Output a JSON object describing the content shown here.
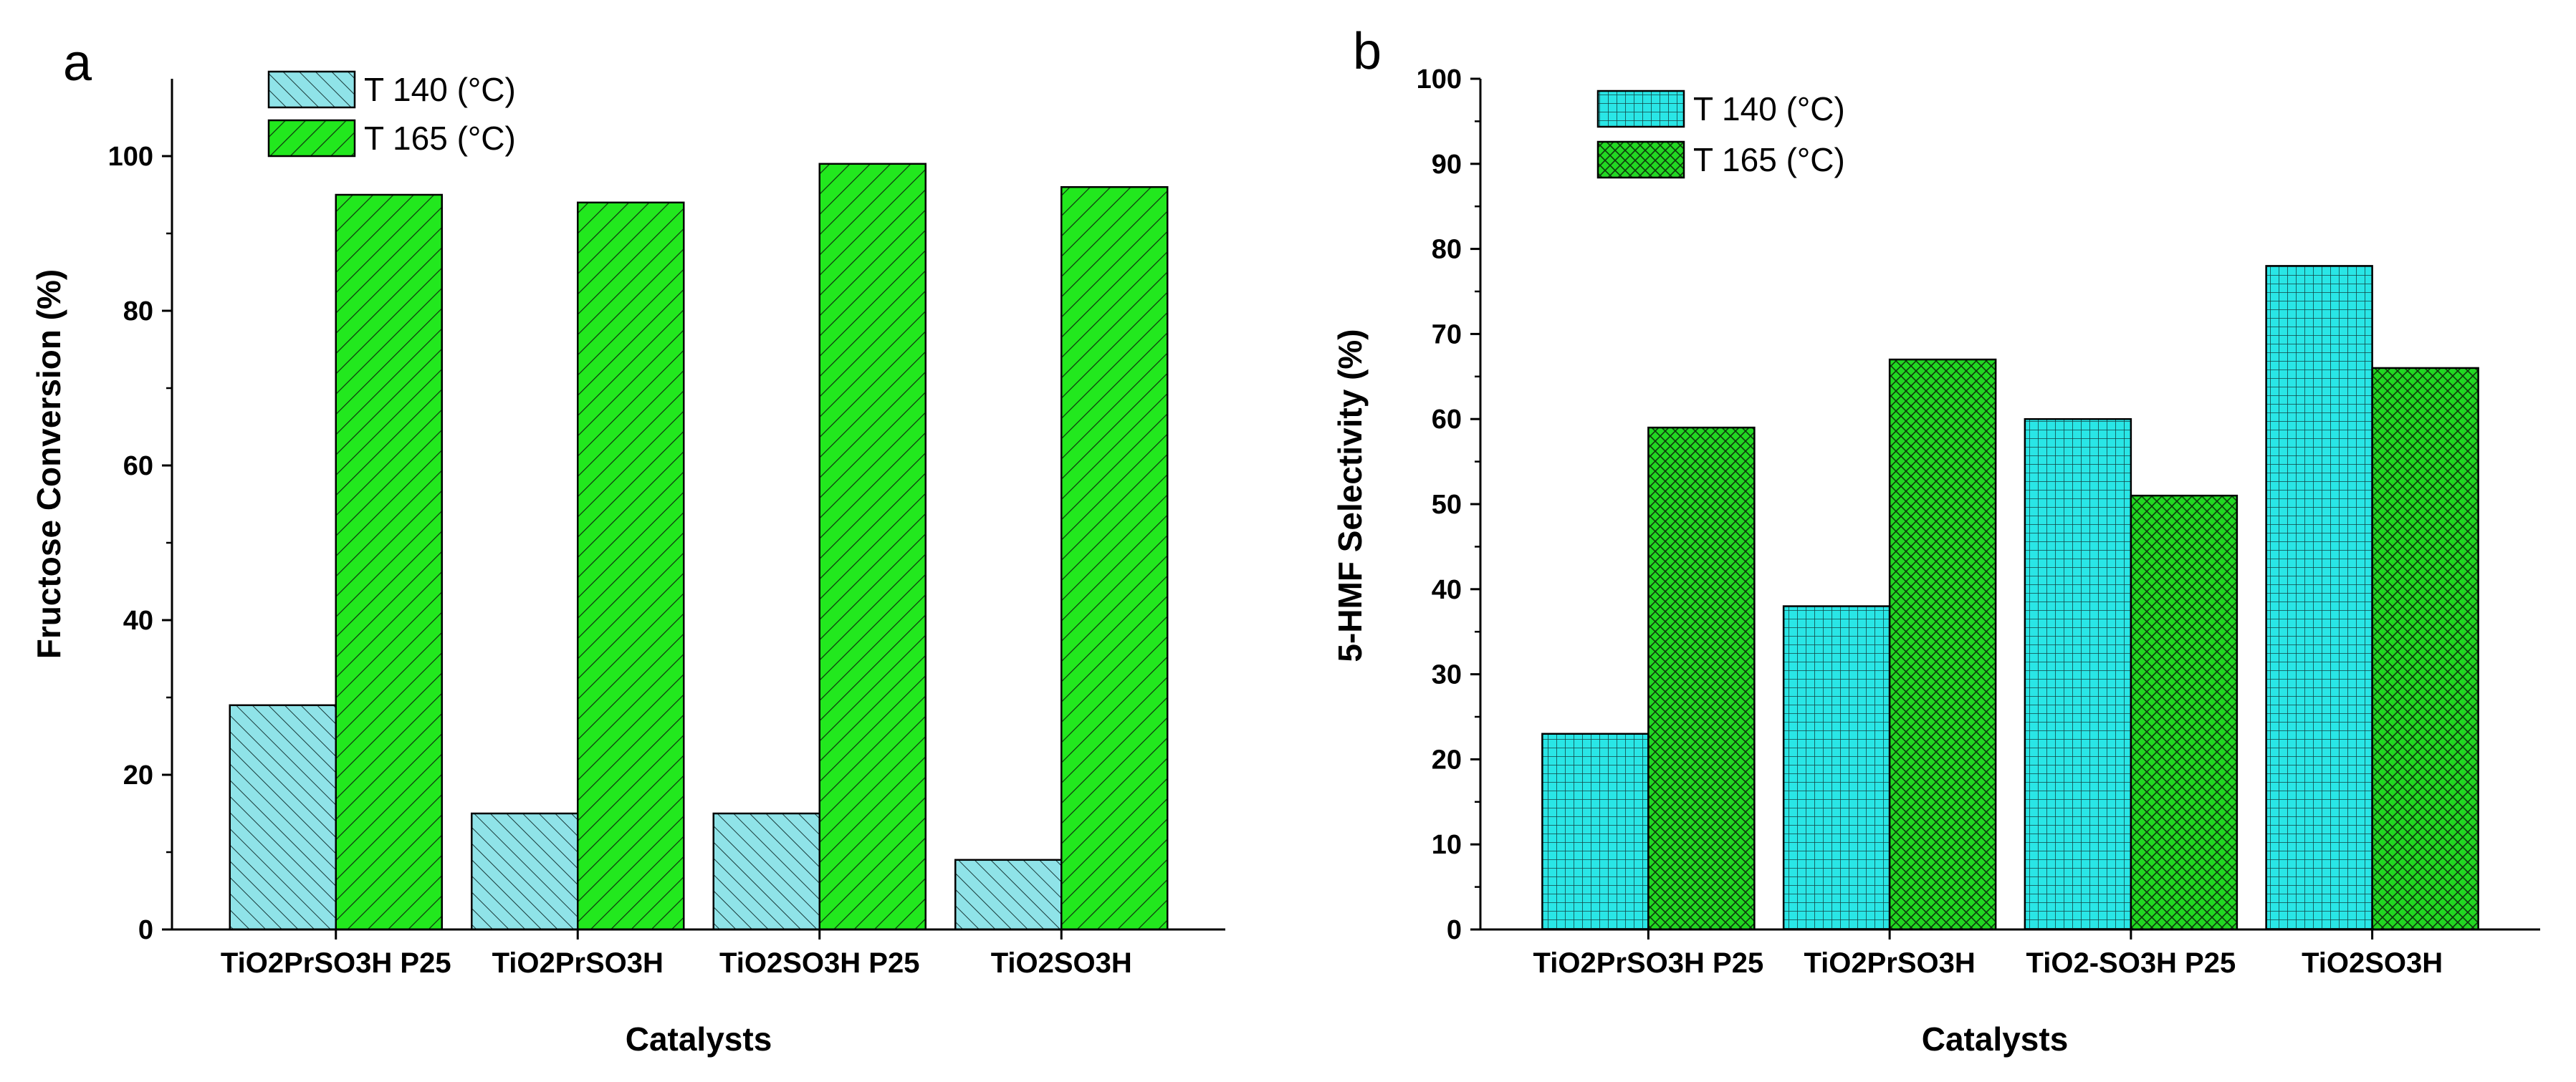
{
  "chart_data": [
    {
      "panel": "a",
      "type": "bar",
      "categories": [
        "TiO2PrSO3H P25",
        "TiO2PrSO3H",
        "TiO2SO3H P25",
        "TiO2SO3H"
      ],
      "series": [
        {
          "name": "T 140 (°C)",
          "values": [
            29,
            15,
            15,
            9
          ],
          "color": "#8fe3e8",
          "pattern": "back-diagonal hatch"
        },
        {
          "name": "T 165 (°C)",
          "values": [
            95,
            94,
            99,
            96
          ],
          "color": "#22e81e",
          "pattern": "forward-diagonal hatch"
        }
      ],
      "title": "",
      "xlabel": "Catalysts",
      "ylabel": "Fructose Conversion (%)",
      "ylim": [
        0,
        110
      ],
      "yticks": [
        0,
        20,
        40,
        60,
        80,
        100
      ],
      "grid": false,
      "legend_position": "top-left"
    },
    {
      "panel": "b",
      "type": "bar",
      "categories": [
        "TiO2PrSO3H P25",
        "TiO2PrSO3H",
        "TiO2-SO3H P25",
        "TiO2SO3H"
      ],
      "series": [
        {
          "name": "T 140 (°C)",
          "values": [
            23,
            38,
            60,
            78
          ],
          "color": "#29e6e6",
          "pattern": "square grid"
        },
        {
          "name": "T 165 (°C)",
          "values": [
            59,
            67,
            51,
            66
          ],
          "color": "#22d822",
          "pattern": "crosshatch"
        }
      ],
      "title": "",
      "xlabel": "Catalysts",
      "ylabel": "5-HMF Selectivity (%)",
      "ylim": [
        0,
        100
      ],
      "yticks": [
        0,
        10,
        20,
        30,
        40,
        50,
        60,
        70,
        80,
        90,
        100
      ],
      "grid": false,
      "legend_position": "top-left"
    }
  ]
}
